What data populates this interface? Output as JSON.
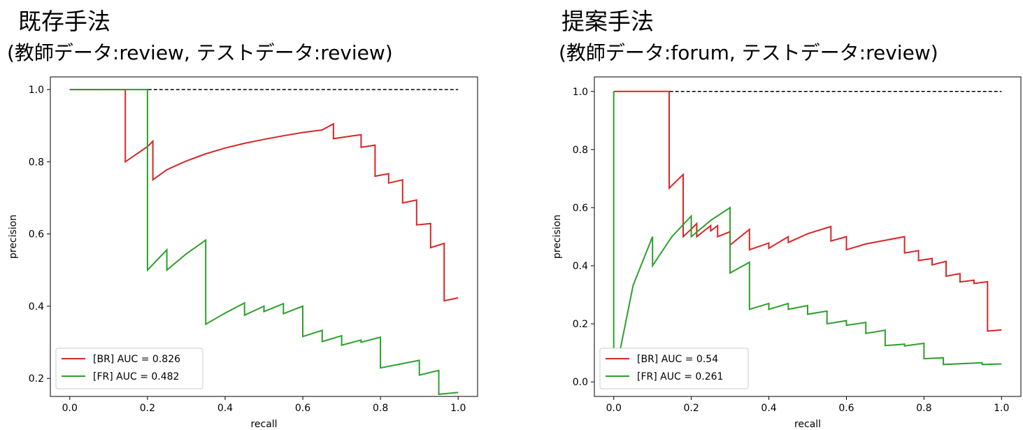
{
  "panels": [
    {
      "title": "既存手法",
      "subtitle": "(教師データ:review, テストデータ:review)"
    },
    {
      "title": "提案手法",
      "subtitle": "(教師データ:forum, テストデータ:review)"
    }
  ],
  "colors": {
    "br": "#d62728",
    "fr": "#2ca02c",
    "reference": "#000000"
  },
  "chart_data": [
    {
      "type": "line",
      "title": "既存手法",
      "subtitle": "(教師データ:review, テストデータ:review)",
      "xlabel": "recall",
      "ylabel": "precision",
      "xlim": [
        -0.05,
        1.05
      ],
      "ylim": [
        0.15,
        1.035
      ],
      "xticks": [
        0.0,
        0.2,
        0.4,
        0.6,
        0.8,
        1.0
      ],
      "yticks": [
        0.2,
        0.4,
        0.6,
        0.8,
        1.0
      ],
      "xtick_labels": [
        "0.0",
        "0.2",
        "0.4",
        "0.6",
        "0.8",
        "1.0"
      ],
      "ytick_labels": [
        "0.2",
        "0.4",
        "0.6",
        "0.8",
        "1.0"
      ],
      "legend_position": "lower-left",
      "grid": false,
      "reference_line": {
        "style": "dashed",
        "x": [
          0.0,
          1.0
        ],
        "y": [
          1.0,
          1.0
        ]
      },
      "series": [
        {
          "name": "[BR] AUC = 0.826",
          "color": "#d62728",
          "x": [
            0.0,
            0.143,
            0.143,
            0.2,
            0.214,
            0.214,
            0.25,
            0.3,
            0.35,
            0.4,
            0.45,
            0.5,
            0.55,
            0.6,
            0.65,
            0.679,
            0.679,
            0.75,
            0.75,
            0.786,
            0.786,
            0.821,
            0.821,
            0.857,
            0.857,
            0.893,
            0.893,
            0.929,
            0.929,
            0.964,
            0.964,
            1.0
          ],
          "y": [
            1.0,
            1.0,
            0.8,
            0.842,
            0.857,
            0.75,
            0.778,
            0.802,
            0.822,
            0.838,
            0.851,
            0.862,
            0.872,
            0.881,
            0.888,
            0.905,
            0.864,
            0.875,
            0.84,
            0.846,
            0.76,
            0.767,
            0.741,
            0.75,
            0.686,
            0.694,
            0.625,
            0.629,
            0.562,
            0.574,
            0.415,
            0.423
          ]
        },
        {
          "name": "[FR] AUC = 0.482",
          "color": "#2ca02c",
          "x": [
            0.0,
            0.2,
            0.2,
            0.25,
            0.25,
            0.3,
            0.35,
            0.35,
            0.4,
            0.45,
            0.45,
            0.5,
            0.5,
            0.55,
            0.55,
            0.6,
            0.6,
            0.65,
            0.65,
            0.7,
            0.7,
            0.75,
            0.75,
            0.8,
            0.8,
            0.9,
            0.9,
            0.95,
            0.95,
            1.0
          ],
          "y": [
            1.0,
            1.0,
            0.5,
            0.556,
            0.5,
            0.545,
            0.583,
            0.35,
            0.381,
            0.409,
            0.375,
            0.4,
            0.385,
            0.407,
            0.379,
            0.4,
            0.316,
            0.333,
            0.302,
            0.318,
            0.292,
            0.306,
            0.3,
            0.314,
            0.229,
            0.25,
            0.209,
            0.222,
            0.156,
            0.161
          ]
        }
      ]
    },
    {
      "type": "line",
      "title": "提案手法",
      "subtitle": "(教師データ:forum, テストデータ:review)",
      "xlabel": "recall",
      "ylabel": "precision",
      "xlim": [
        -0.05,
        1.05
      ],
      "ylim": [
        -0.05,
        1.05
      ],
      "xticks": [
        0.0,
        0.2,
        0.4,
        0.6,
        0.8,
        1.0
      ],
      "yticks": [
        0.0,
        0.2,
        0.4,
        0.6,
        0.8,
        1.0
      ],
      "xtick_labels": [
        "0.0",
        "0.2",
        "0.4",
        "0.6",
        "0.8",
        "1.0"
      ],
      "ytick_labels": [
        "0.0",
        "0.2",
        "0.4",
        "0.6",
        "0.8",
        "1.0"
      ],
      "legend_position": "lower-left",
      "grid": false,
      "reference_line": {
        "style": "dashed",
        "x": [
          0.0,
          1.0
        ],
        "y": [
          1.0,
          1.0
        ]
      },
      "series": [
        {
          "name": "[BR] AUC = 0.54",
          "color": "#d62728",
          "x": [
            0.0,
            0.143,
            0.143,
            0.179,
            0.179,
            0.2,
            0.214,
            0.214,
            0.25,
            0.25,
            0.268,
            0.268,
            0.3,
            0.3,
            0.35,
            0.35,
            0.4,
            0.4,
            0.45,
            0.45,
            0.5,
            0.56,
            0.56,
            0.6,
            0.6,
            0.65,
            0.75,
            0.75,
            0.786,
            0.786,
            0.821,
            0.821,
            0.857,
            0.857,
            0.893,
            0.893,
            0.929,
            0.929,
            0.964,
            0.964,
            1.0
          ],
          "y": [
            1.0,
            1.0,
            0.667,
            0.714,
            0.5,
            0.526,
            0.545,
            0.5,
            0.538,
            0.52,
            0.538,
            0.5,
            0.517,
            0.471,
            0.525,
            0.455,
            0.478,
            0.46,
            0.5,
            0.48,
            0.51,
            0.535,
            0.485,
            0.5,
            0.455,
            0.475,
            0.5,
            0.444,
            0.452,
            0.418,
            0.425,
            0.403,
            0.415,
            0.364,
            0.373,
            0.344,
            0.35,
            0.339,
            0.345,
            0.175,
            0.179
          ]
        },
        {
          "name": "[FR] AUC = 0.261",
          "color": "#2ca02c",
          "x": [
            0.0,
            0.0,
            0.05,
            0.1,
            0.1,
            0.15,
            0.2,
            0.2,
            0.25,
            0.3,
            0.3,
            0.35,
            0.35,
            0.4,
            0.4,
            0.45,
            0.45,
            0.5,
            0.5,
            0.55,
            0.55,
            0.6,
            0.6,
            0.65,
            0.65,
            0.7,
            0.7,
            0.75,
            0.75,
            0.8,
            0.8,
            0.85,
            0.85,
            0.95,
            0.95,
            1.0
          ],
          "y": [
            1.0,
            0.0,
            0.333,
            0.5,
            0.4,
            0.5,
            0.571,
            0.5,
            0.556,
            0.6,
            0.375,
            0.412,
            0.25,
            0.27,
            0.25,
            0.27,
            0.25,
            0.263,
            0.233,
            0.244,
            0.2,
            0.211,
            0.195,
            0.205,
            0.167,
            0.178,
            0.125,
            0.13,
            0.124,
            0.133,
            0.08,
            0.083,
            0.06,
            0.066,
            0.06,
            0.062
          ]
        }
      ]
    }
  ]
}
